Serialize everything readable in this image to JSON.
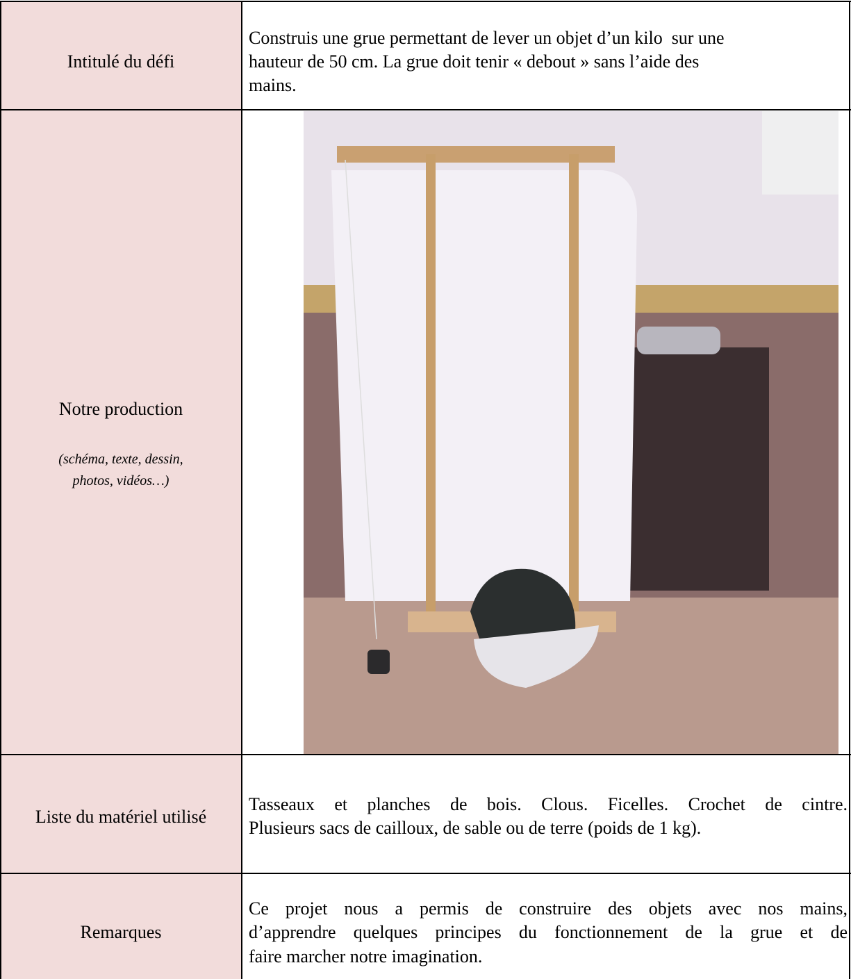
{
  "rows": [
    {
      "label": "Intitulé du défi",
      "content": [
        "Construis une grue permettant de lever un objet d’un kilo  sur une",
        "hauteur de 50 cm. La grue doit tenir « debout » sans l’aide des",
        "mains."
      ]
    },
    {
      "label": "Notre production",
      "note": [
        "(schéma, texte, dessin,",
        "photos, vidéos…)"
      ]
    },
    {
      "label": "Liste du matériel utilisé",
      "content": [
        "Tasseaux et planches de bois. Clous. Ficelles. Crochet de cintre.",
        "Plusieurs sacs de cailloux, de sable ou de terre (poids de 1 kg)."
      ]
    },
    {
      "label": "Remarques",
      "content": [
        "Ce projet nous a permis de construire des objets avec nos mains,",
        "d’apprendre quelques principes du fonctionnement de la grue et de",
        "faire marcher notre imagination."
      ]
    }
  ]
}
